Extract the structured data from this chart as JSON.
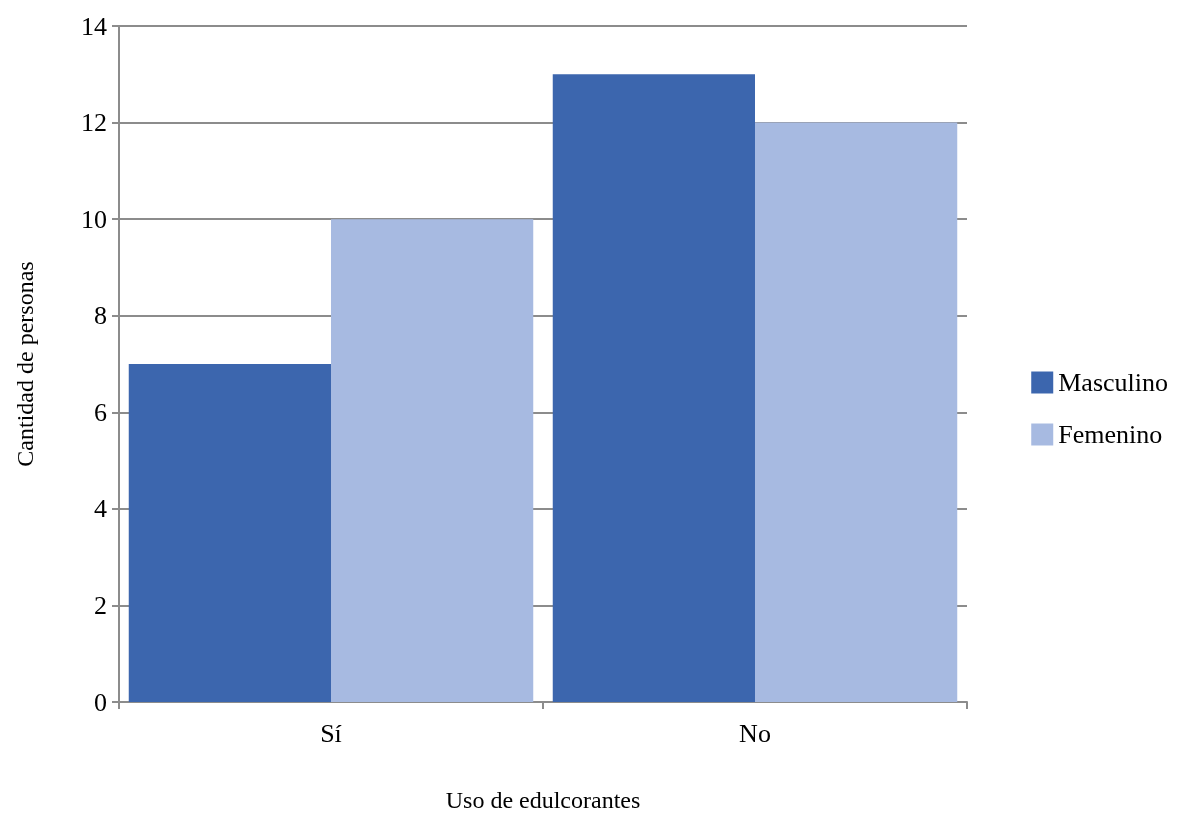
{
  "chart_data": {
    "type": "bar",
    "xlabel": "Uso de edulcorantes",
    "ylabel": "Cantidad de personas",
    "categories": [
      "Sí",
      "No"
    ],
    "series": [
      {
        "name": "Masculino",
        "color": "#3c66ae",
        "values": [
          7,
          13
        ]
      },
      {
        "name": "Femenino",
        "color": "#a7bae1",
        "values": [
          10,
          12
        ]
      }
    ],
    "ylim": [
      0,
      14
    ],
    "yticks": [
      0,
      2,
      4,
      6,
      8,
      10,
      12,
      14
    ],
    "grid": "y",
    "legend": "right"
  }
}
